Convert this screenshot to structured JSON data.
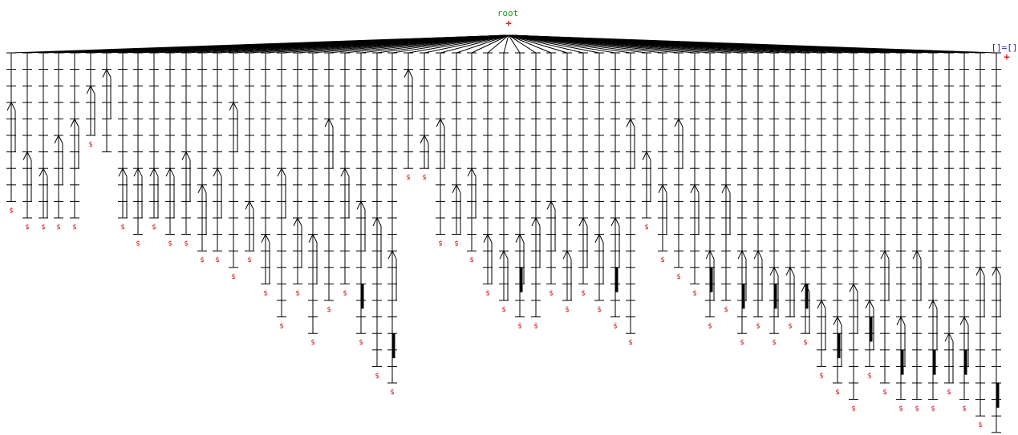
{
  "root": {
    "label": "root",
    "marker": "+"
  },
  "right_node": {
    "label": "[]=[]",
    "marker": "+"
  },
  "end_marker": "$",
  "colors": {
    "background": "#ffffff",
    "edges": "#000000",
    "root_label": "#1a9e1a",
    "right_label": "#2323d0",
    "end_marker": "#d42020"
  },
  "tree": {
    "child_count": 63,
    "children": [
      {
        "depth": 9,
        "branch_depth": 3,
        "end": true
      },
      {
        "depth": 10,
        "branch_depth": 6,
        "end": true
      },
      {
        "depth": 10,
        "branch_depth": 7,
        "end": true
      },
      {
        "depth": 10,
        "branch_depth": 5,
        "end": true
      },
      {
        "depth": 10,
        "branch_depth": 4,
        "end": true
      },
      {
        "depth": 5,
        "branch_depth": 2,
        "end": true
      },
      {
        "depth": 6,
        "branch_depth": 1,
        "end": false
      },
      {
        "depth": 10,
        "branch_depth": 7,
        "end": true
      },
      {
        "depth": 11,
        "branch_depth": 7,
        "end": true
      },
      {
        "depth": 10,
        "branch_depth": 7,
        "end": true
      },
      {
        "depth": 11,
        "branch_depth": 7,
        "end": true
      },
      {
        "depth": 11,
        "branch_depth": 6,
        "end": true
      },
      {
        "depth": 12,
        "branch_depth": 8,
        "end": true
      },
      {
        "depth": 12,
        "branch_depth": 7,
        "end": true
      },
      {
        "depth": 13,
        "branch_depth": 3,
        "end": true
      },
      {
        "depth": 12,
        "branch_depth": 9,
        "end": true
      },
      {
        "depth": 14,
        "branch_depth": 11,
        "end": true
      },
      {
        "depth": 16,
        "branch_depth": 7,
        "end": true
      },
      {
        "depth": 14,
        "branch_depth": 10,
        "end": true
      },
      {
        "depth": 17,
        "branch_depth": 11,
        "end": true
      },
      {
        "depth": 15,
        "branch_depth": 4,
        "end": true
      },
      {
        "depth": 14,
        "branch_depth": 7,
        "end": true
      },
      {
        "depth": 17,
        "branch_depth": 9,
        "end": true
      },
      {
        "depth": 19,
        "branch_depth": 10,
        "end": true
      },
      {
        "depth": 20,
        "branch_depth": 12,
        "end": true
      },
      {
        "depth": 7,
        "branch_depth": 1,
        "end": true
      },
      {
        "depth": 7,
        "branch_depth": 5,
        "end": true
      },
      {
        "depth": 11,
        "branch_depth": 4,
        "end": true
      },
      {
        "depth": 11,
        "branch_depth": 8,
        "end": true
      },
      {
        "depth": 12,
        "branch_depth": 7,
        "end": true
      },
      {
        "depth": 14,
        "branch_depth": 11,
        "end": true
      },
      {
        "depth": 15,
        "branch_depth": 12,
        "end": true
      },
      {
        "depth": 16,
        "branch_depth": 11,
        "end": true
      },
      {
        "depth": 16,
        "branch_depth": 10,
        "end": true
      },
      {
        "depth": 14,
        "branch_depth": 9,
        "end": true
      },
      {
        "depth": 15,
        "branch_depth": 12,
        "end": true
      },
      {
        "depth": 14,
        "branch_depth": 10,
        "end": true
      },
      {
        "depth": 15,
        "branch_depth": 11,
        "end": true
      },
      {
        "depth": 16,
        "branch_depth": 10,
        "end": true
      },
      {
        "depth": 17,
        "branch_depth": 4,
        "end": true
      },
      {
        "depth": 10,
        "branch_depth": 6,
        "end": true
      },
      {
        "depth": 12,
        "branch_depth": 8,
        "end": true
      },
      {
        "depth": 13,
        "branch_depth": 4,
        "end": true
      },
      {
        "depth": 14,
        "branch_depth": 8,
        "end": true
      },
      {
        "depth": 16,
        "branch_depth": 12,
        "end": true
      },
      {
        "depth": 15,
        "branch_depth": 8,
        "end": true
      },
      {
        "depth": 17,
        "branch_depth": 12,
        "end": true
      },
      {
        "depth": 16,
        "branch_depth": 12,
        "end": true
      },
      {
        "depth": 17,
        "branch_depth": 13,
        "end": true
      },
      {
        "depth": 16,
        "branch_depth": 13,
        "end": true
      },
      {
        "depth": 17,
        "branch_depth": 14,
        "end": true
      },
      {
        "depth": 19,
        "branch_depth": 15,
        "end": true
      },
      {
        "depth": 20,
        "branch_depth": 16,
        "end": true
      },
      {
        "depth": 21,
        "branch_depth": 14,
        "end": true
      },
      {
        "depth": 19,
        "branch_depth": 15,
        "end": true
      },
      {
        "depth": 20,
        "branch_depth": 12,
        "end": true
      },
      {
        "depth": 21,
        "branch_depth": 16,
        "end": true
      },
      {
        "depth": 21,
        "branch_depth": 12,
        "end": true
      },
      {
        "depth": 21,
        "branch_depth": 15,
        "end": true
      },
      {
        "depth": 20,
        "branch_depth": 17,
        "end": true
      },
      {
        "depth": 21,
        "branch_depth": 16,
        "end": true
      },
      {
        "depth": 22,
        "branch_depth": 13,
        "end": true
      },
      {
        "depth": 23,
        "branch_depth": 13,
        "end": false
      }
    ]
  }
}
